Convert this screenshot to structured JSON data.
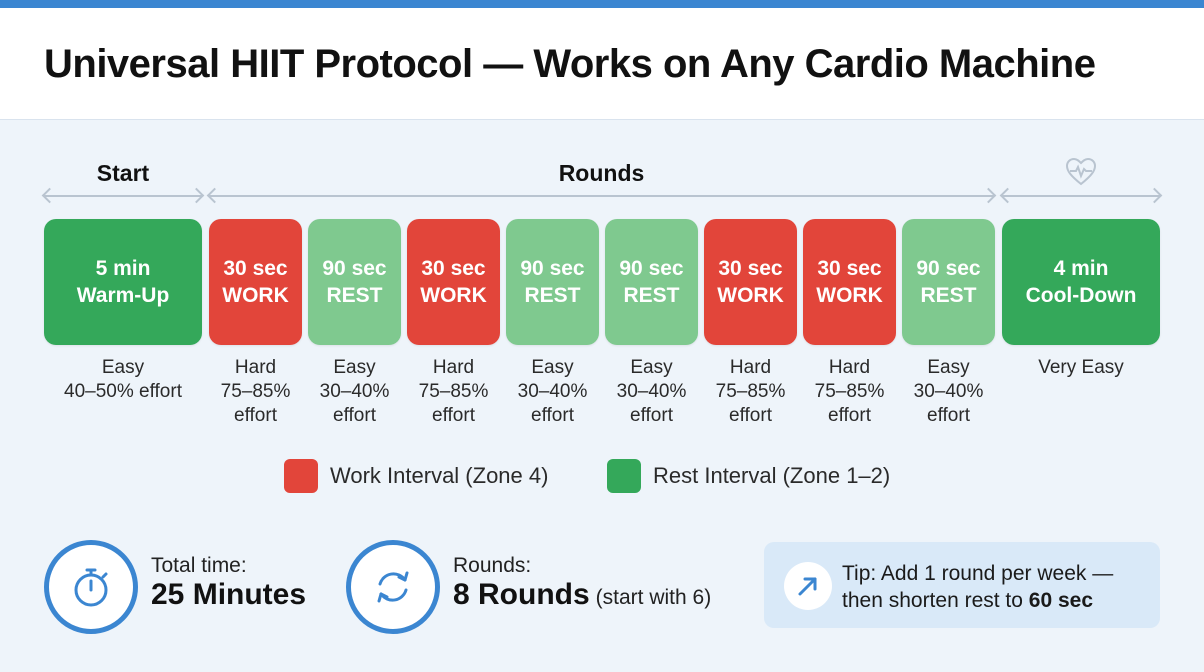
{
  "title": "Universal HIIT Protocol — Works on Any Cardio Machine",
  "sections": {
    "start": "Start",
    "rounds": "Rounds",
    "end_icon": "heart-pulse-icon"
  },
  "blocks": [
    {
      "type": "warmup",
      "line1": "5 min",
      "line2": "Warm-Up",
      "desc": [
        "Easy",
        "40–50% effort"
      ]
    },
    {
      "type": "work",
      "line1": "30 sec",
      "line2": "WORK",
      "desc": [
        "Hard",
        "75–85%",
        "effort"
      ]
    },
    {
      "type": "rest",
      "line1": "90 sec",
      "line2": "REST",
      "desc": [
        "Easy",
        "30–40%",
        "effort"
      ]
    },
    {
      "type": "work",
      "line1": "30 sec",
      "line2": "WORK",
      "desc": [
        "Hard",
        "75–85%",
        "effort"
      ]
    },
    {
      "type": "rest",
      "line1": "90 sec",
      "line2": "REST",
      "desc": [
        "Easy",
        "30–40%",
        "effort"
      ]
    },
    {
      "type": "rest",
      "line1": "90 sec",
      "line2": "REST",
      "desc": [
        "Easy",
        "30–40%",
        "effort"
      ]
    },
    {
      "type": "work",
      "line1": "30 sec",
      "line2": "WORK",
      "desc": [
        "Hard",
        "75–85%",
        "effort"
      ]
    },
    {
      "type": "work",
      "line1": "30 sec",
      "line2": "WORK",
      "desc": [
        "Hard",
        "75–85%",
        "effort"
      ]
    },
    {
      "type": "rest",
      "line1": "90 sec",
      "line2": "REST",
      "desc": [
        "Easy",
        "30–40%",
        "effort"
      ]
    },
    {
      "type": "cooldown",
      "line1": "4 min",
      "line2": "Cool-Down",
      "desc": [
        "Very Easy"
      ]
    }
  ],
  "legend": {
    "work": "Work Interval (Zone 4)",
    "rest": "Rest Interval (Zone 1–2)"
  },
  "stats": {
    "time_label": "Total time:",
    "time_value": "25 Minutes",
    "rounds_label": "Rounds:",
    "rounds_value": "8 Rounds",
    "rounds_note": "(start with 6)"
  },
  "tip": {
    "line1": "Tip: Add 1 round per week —",
    "line2_prefix": "then shorten rest to",
    "line2_bold": "60 sec"
  },
  "colors": {
    "work": "#e2453a",
    "rest": "#7fc98f",
    "major": "#34a85a",
    "accent": "#3b86d1"
  }
}
